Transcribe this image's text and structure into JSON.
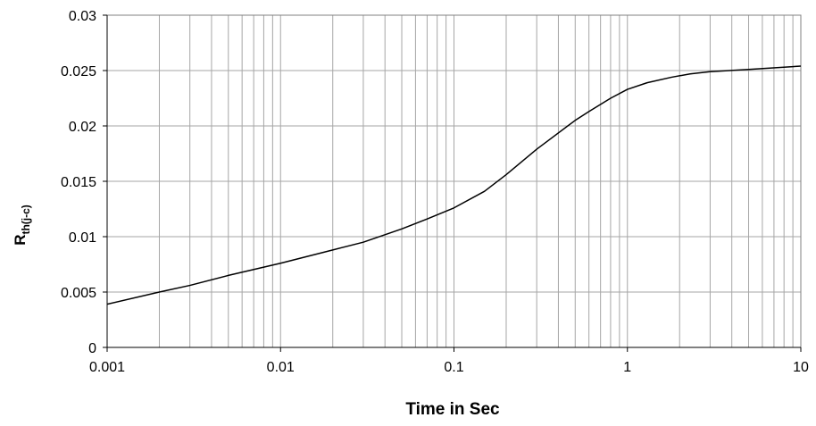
{
  "chart_data": {
    "type": "line",
    "title": "",
    "xlabel": "Time in Sec",
    "ylabel": {
      "main": "R",
      "sub": "th(j-c)"
    },
    "x_scale": "log",
    "xlim": [
      0.001,
      10
    ],
    "ylim": [
      0,
      0.03
    ],
    "x_ticks": [
      "0.001",
      "0.01",
      "0.1",
      "1",
      "10"
    ],
    "y_ticks": [
      "0",
      "0.005",
      "0.01",
      "0.015",
      "0.02",
      "0.025",
      "0.03"
    ],
    "grid": true,
    "legend": "none",
    "line_color": "#000000",
    "grid_color": "#a6a6a6",
    "series": [
      {
        "x": [
          0.001,
          0.002,
          0.003,
          0.005,
          0.01,
          0.02,
          0.03,
          0.05,
          0.07,
          0.1,
          0.15,
          0.2,
          0.3,
          0.5,
          0.6,
          0.8,
          1,
          1.3,
          1.8,
          2.3,
          3,
          5,
          10
        ],
        "y": [
          0.0039,
          0.005,
          0.0056,
          0.0065,
          0.0076,
          0.0088,
          0.0095,
          0.0107,
          0.0116,
          0.0126,
          0.0141,
          0.0156,
          0.0179,
          0.0205,
          0.0213,
          0.0225,
          0.0233,
          0.0239,
          0.0244,
          0.0247,
          0.0249,
          0.0251,
          0.0254
        ]
      }
    ]
  }
}
